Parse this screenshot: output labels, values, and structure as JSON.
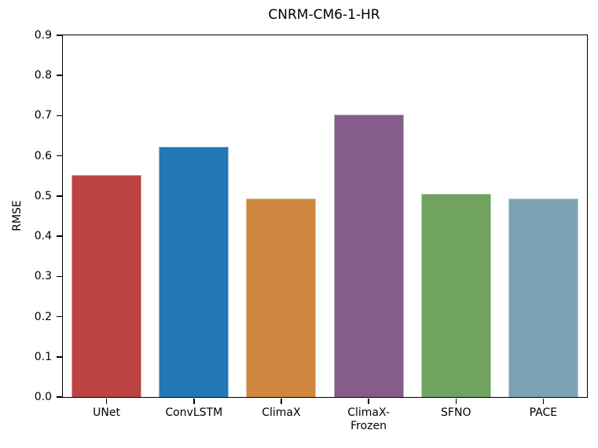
{
  "chart_data": {
    "type": "bar",
    "title": "CNRM-CM6-1-HR",
    "xlabel": "",
    "ylabel": "RMSE",
    "categories": [
      "UNet",
      "ConvLSTM",
      "ClimaX",
      "ClimaX-\nFrozen",
      "SFNO",
      "PACE"
    ],
    "values": [
      0.552,
      0.622,
      0.493,
      0.703,
      0.506,
      0.493
    ],
    "bar_colors": [
      "#bc4342",
      "#2377b4",
      "#cf863f",
      "#855c8a",
      "#6fa35f",
      "#7ba2b5"
    ],
    "ylim": [
      0.0,
      0.9
    ],
    "yticks": [
      "0.0",
      "0.1",
      "0.2",
      "0.3",
      "0.4",
      "0.5",
      "0.6",
      "0.7",
      "0.8",
      "0.9"
    ],
    "grid": false,
    "legend": null,
    "bar_width_ratio": 0.8,
    "colors": {
      "axes": "#000000",
      "text": "#000000",
      "background": "#ffffff"
    }
  }
}
